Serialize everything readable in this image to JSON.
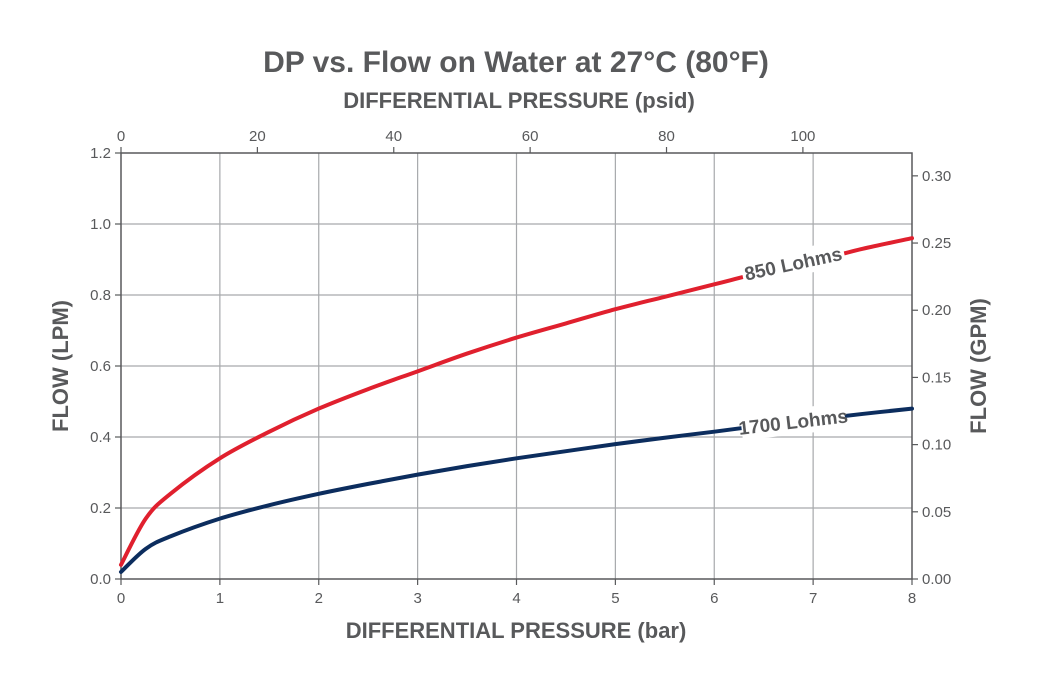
{
  "chart_data": {
    "type": "line",
    "title": "DP vs. Flow on Water at 27°C (80°F)",
    "xlabel": "DIFFERENTIAL PRESSURE (bar)",
    "x2label": "DIFFERENTIAL PRESSURE (psid)",
    "ylabel": "FLOW (LPM)",
    "y2label": "FLOW (GPM)",
    "xlim": [
      0,
      8
    ],
    "ylim": [
      0,
      1.2
    ],
    "x2lim": [
      0,
      116
    ],
    "y2lim": [
      0,
      0.317
    ],
    "grid": true,
    "x_ticks": [
      "0",
      "1",
      "2",
      "3",
      "4",
      "5",
      "6",
      "7",
      "8"
    ],
    "x_tick_values": [
      0,
      1,
      2,
      3,
      4,
      5,
      6,
      7,
      8
    ],
    "y_ticks": [
      "0.0",
      "0.2",
      "0.4",
      "0.6",
      "0.8",
      "1.0",
      "1.2"
    ],
    "y_tick_values": [
      0,
      0.2,
      0.4,
      0.6,
      0.8,
      1.0,
      1.2
    ],
    "x2_ticks": [
      "0",
      "20",
      "40",
      "60",
      "80",
      "100"
    ],
    "x2_tick_values": [
      0,
      20,
      40,
      60,
      80,
      100
    ],
    "y2_ticks": [
      "0.00",
      "0.05",
      "0.10",
      "0.15",
      "0.20",
      "0.25",
      "0.30"
    ],
    "y2_tick_values": [
      0,
      0.05,
      0.1,
      0.15,
      0.2,
      0.25,
      0.3
    ],
    "series": [
      {
        "name": "850 Lohms",
        "color": "#e0202e",
        "x": [
          0,
          0.25,
          0.5,
          1,
          1.5,
          2,
          2.5,
          3,
          3.5,
          4,
          4.5,
          5,
          5.5,
          6,
          6.5,
          7,
          7.5,
          8
        ],
        "y": [
          0.04,
          0.17,
          0.24,
          0.34,
          0.415,
          0.48,
          0.535,
          0.585,
          0.635,
          0.68,
          0.72,
          0.76,
          0.795,
          0.83,
          0.865,
          0.895,
          0.93,
          0.96
        ]
      },
      {
        "name": "1700 Lohms",
        "color": "#0c2d5e",
        "x": [
          0,
          0.25,
          0.5,
          1,
          1.5,
          2,
          2.5,
          3,
          3.5,
          4,
          4.5,
          5,
          5.5,
          6,
          6.5,
          7,
          7.5,
          8
        ],
        "y": [
          0.02,
          0.085,
          0.12,
          0.17,
          0.208,
          0.24,
          0.268,
          0.294,
          0.318,
          0.34,
          0.36,
          0.38,
          0.398,
          0.415,
          0.433,
          0.449,
          0.465,
          0.48
        ]
      }
    ]
  }
}
